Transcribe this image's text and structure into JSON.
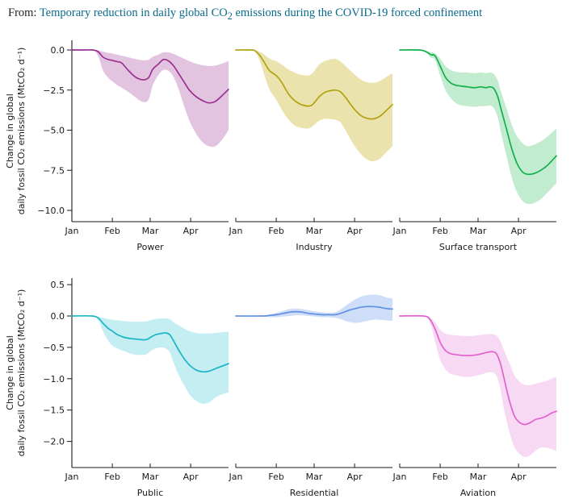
{
  "header": {
    "prefix": "From: ",
    "title_pre": "Temporary reduction in daily global CO",
    "title_sub": "2",
    "title_post": " emissions during the COVID-19 forced confinement",
    "link_color": "#086a8d"
  },
  "figure": {
    "ylabel_line1": "Change in global",
    "ylabel_line2": "daily fossil CO₂ emissions (MtCO₂ d⁻¹)",
    "x_tick_labels": [
      "Jan",
      "Feb",
      "Mar",
      "Apr"
    ],
    "x_tick_days": [
      0,
      31,
      60,
      91
    ],
    "x_total_days": 120,
    "rows": [
      {
        "ylim": [
          -10.7,
          0.6
        ],
        "yticks": [
          {
            "v": 0,
            "label": "0.0"
          },
          {
            "v": -2.5,
            "label": "−2.5"
          },
          {
            "v": -5,
            "label": "−5.0"
          },
          {
            "v": -7.5,
            "label": "−7.5"
          },
          {
            "v": -10,
            "label": "−10.0"
          }
        ],
        "panels": [
          "Power",
          "Industry",
          "Surface transport"
        ]
      },
      {
        "ylim": [
          -2.42,
          0.75
        ],
        "yticks": [
          {
            "v": 0.5,
            "label": "0.5"
          },
          {
            "v": 0,
            "label": "0.0"
          },
          {
            "v": -0.5,
            "label": "−0.5"
          },
          {
            "v": -1,
            "label": "−1.0"
          },
          {
            "v": -1.5,
            "label": "−1.5"
          },
          {
            "v": -2,
            "label": "−2.0"
          }
        ],
        "panels": [
          "Public",
          "Residential",
          "Aviation"
        ]
      }
    ]
  },
  "chart_data": [
    {
      "type": "line",
      "name": "Power",
      "row": 0,
      "line_color": "#9b2f93",
      "band_color": "#e2c4e1",
      "days": [
        0,
        10,
        16,
        20,
        24,
        28,
        31,
        34,
        38,
        43,
        48,
        52,
        56,
        59,
        62,
        66,
        70,
        74,
        78,
        82,
        86,
        90,
        95,
        100,
        105,
        110,
        115,
        120
      ],
      "mean": [
        0,
        0,
        0,
        -0.1,
        -0.45,
        -0.6,
        -0.65,
        -0.72,
        -0.8,
        -1.25,
        -1.65,
        -1.82,
        -1.85,
        -1.7,
        -1.2,
        -0.9,
        -0.6,
        -0.68,
        -1.0,
        -1.5,
        -2.0,
        -2.5,
        -2.9,
        -3.15,
        -3.3,
        -3.2,
        -2.85,
        -2.45
      ],
      "upper": [
        0,
        0,
        0,
        -0.03,
        -0.1,
        -0.18,
        -0.22,
        -0.28,
        -0.35,
        -0.45,
        -0.55,
        -0.62,
        -0.65,
        -0.6,
        -0.42,
        -0.3,
        -0.15,
        -0.15,
        -0.25,
        -0.4,
        -0.55,
        -0.7,
        -0.85,
        -0.95,
        -1.0,
        -0.97,
        -0.85,
        -0.68
      ],
      "lower": [
        0,
        0,
        0,
        -0.35,
        -1.3,
        -1.75,
        -1.95,
        -2.15,
        -2.35,
        -2.6,
        -2.9,
        -3.15,
        -3.25,
        -3.05,
        -2.2,
        -1.6,
        -1.25,
        -1.3,
        -1.7,
        -2.5,
        -3.5,
        -4.4,
        -5.2,
        -5.75,
        -6.0,
        -6.0,
        -5.6,
        -5.0
      ]
    },
    {
      "type": "line",
      "name": "Industry",
      "row": 0,
      "line_color": "#b2a20f",
      "band_color": "#ebe3ae",
      "days": [
        0,
        10,
        14,
        18,
        22,
        26,
        31,
        35,
        40,
        45,
        50,
        55,
        58,
        61,
        64,
        68,
        72,
        76,
        80,
        84,
        88,
        92,
        96,
        100,
        105,
        110,
        115,
        120
      ],
      "mean": [
        0,
        0,
        -0.02,
        -0.3,
        -0.8,
        -1.3,
        -1.6,
        -2.0,
        -2.7,
        -3.15,
        -3.4,
        -3.5,
        -3.45,
        -3.2,
        -2.9,
        -2.65,
        -2.55,
        -2.5,
        -2.6,
        -2.95,
        -3.4,
        -3.8,
        -4.1,
        -4.25,
        -4.3,
        -4.15,
        -3.8,
        -3.4
      ],
      "upper": [
        0,
        0,
        0,
        -0.1,
        -0.3,
        -0.55,
        -0.7,
        -0.9,
        -1.2,
        -1.4,
        -1.55,
        -1.6,
        -1.5,
        -1.2,
        -0.9,
        -0.7,
        -0.6,
        -0.55,
        -0.7,
        -1.0,
        -1.3,
        -1.6,
        -1.85,
        -2.0,
        -2.05,
        -1.95,
        -1.7,
        -1.45
      ],
      "lower": [
        0,
        0,
        -0.05,
        -0.6,
        -1.6,
        -2.5,
        -3.1,
        -3.7,
        -4.3,
        -4.7,
        -4.85,
        -4.9,
        -4.8,
        -4.6,
        -4.4,
        -4.3,
        -4.3,
        -4.35,
        -4.5,
        -5.0,
        -5.6,
        -6.1,
        -6.5,
        -6.8,
        -6.95,
        -6.8,
        -6.4,
        -6.0
      ]
    },
    {
      "type": "line",
      "name": "Surface transport",
      "row": 0,
      "line_color": "#10b04b",
      "band_color": "#c2ecd0",
      "days": [
        0,
        15,
        20,
        24,
        27,
        31,
        35,
        39,
        43,
        47,
        52,
        57,
        62,
        66,
        69,
        72,
        75,
        78,
        82,
        86,
        90,
        94,
        98,
        103,
        108,
        113,
        120
      ],
      "mean": [
        0,
        0,
        -0.1,
        -0.3,
        -0.35,
        -1.0,
        -1.7,
        -2.05,
        -2.2,
        -2.25,
        -2.3,
        -2.35,
        -2.3,
        -2.35,
        -2.3,
        -2.4,
        -2.9,
        -3.8,
        -5.0,
        -6.2,
        -7.1,
        -7.6,
        -7.75,
        -7.7,
        -7.5,
        -7.2,
        -6.6
      ],
      "upper": [
        0,
        0,
        -0.05,
        -0.15,
        -0.2,
        -0.55,
        -1.0,
        -1.25,
        -1.35,
        -1.4,
        -1.4,
        -1.45,
        -1.4,
        -1.45,
        -1.4,
        -1.5,
        -1.9,
        -2.7,
        -3.7,
        -4.7,
        -5.4,
        -5.8,
        -6.0,
        -5.9,
        -5.7,
        -5.4,
        -4.9
      ],
      "lower": [
        0,
        0,
        -0.15,
        -0.5,
        -0.6,
        -1.6,
        -2.5,
        -3.0,
        -3.3,
        -3.45,
        -3.5,
        -3.55,
        -3.5,
        -3.5,
        -3.45,
        -3.6,
        -4.2,
        -5.3,
        -6.7,
        -8.0,
        -8.9,
        -9.4,
        -9.6,
        -9.55,
        -9.3,
        -8.9,
        -8.3
      ]
    },
    {
      "type": "line",
      "name": "Public",
      "row": 1,
      "line_color": "#1ab5c5",
      "band_color": "#c5eef3",
      "days": [
        0,
        15,
        20,
        24,
        28,
        31,
        35,
        40,
        45,
        50,
        55,
        58,
        61,
        64,
        68,
        72,
        75,
        78,
        82,
        86,
        90,
        95,
        100,
        105,
        110,
        115,
        120
      ],
      "mean": [
        0,
        0,
        -0.03,
        -0.12,
        -0.2,
        -0.24,
        -0.3,
        -0.34,
        -0.36,
        -0.37,
        -0.38,
        -0.37,
        -0.33,
        -0.3,
        -0.28,
        -0.27,
        -0.3,
        -0.4,
        -0.55,
        -0.68,
        -0.78,
        -0.86,
        -0.89,
        -0.88,
        -0.84,
        -0.8,
        -0.76
      ],
      "upper": [
        0,
        0,
        -0.01,
        -0.03,
        -0.05,
        -0.06,
        -0.07,
        -0.08,
        -0.09,
        -0.09,
        -0.09,
        -0.08,
        -0.06,
        -0.05,
        -0.04,
        -0.04,
        -0.05,
        -0.1,
        -0.15,
        -0.2,
        -0.24,
        -0.27,
        -0.28,
        -0.28,
        -0.27,
        -0.26,
        -0.25
      ],
      "lower": [
        0,
        0,
        -0.06,
        -0.25,
        -0.4,
        -0.47,
        -0.52,
        -0.56,
        -0.6,
        -0.62,
        -0.62,
        -0.6,
        -0.55,
        -0.52,
        -0.5,
        -0.52,
        -0.58,
        -0.75,
        -0.95,
        -1.1,
        -1.25,
        -1.35,
        -1.4,
        -1.38,
        -1.3,
        -1.25,
        -1.22
      ]
    },
    {
      "type": "line",
      "name": "Residential",
      "row": 1,
      "line_color": "#6090e4",
      "band_color": "#cfdef8",
      "days": [
        0,
        20,
        26,
        31,
        36,
        41,
        46,
        51,
        56,
        61,
        66,
        71,
        76,
        80,
        84,
        88,
        92,
        96,
        100,
        105,
        110,
        115,
        120
      ],
      "mean": [
        0,
        0,
        0.01,
        0.02,
        0.04,
        0.06,
        0.07,
        0.06,
        0.04,
        0.03,
        0.02,
        0.02,
        0.02,
        0.04,
        0.07,
        0.1,
        0.12,
        0.14,
        0.15,
        0.15,
        0.14,
        0.12,
        0.11
      ],
      "upper": [
        0,
        0.01,
        0.02,
        0.05,
        0.08,
        0.11,
        0.12,
        0.11,
        0.09,
        0.07,
        0.06,
        0.05,
        0.06,
        0.1,
        0.16,
        0.22,
        0.27,
        0.31,
        0.33,
        0.34,
        0.33,
        0.3,
        0.28
      ],
      "lower": [
        0,
        -0.01,
        -0.02,
        -0.02,
        -0.01,
        0,
        0.01,
        0.01,
        0,
        -0.01,
        -0.02,
        -0.02,
        -0.03,
        -0.05,
        -0.08,
        -0.1,
        -0.11,
        -0.1,
        -0.08,
        -0.06,
        -0.06,
        -0.07,
        -0.08
      ]
    },
    {
      "type": "line",
      "name": "Aviation",
      "row": 1,
      "line_color": "#e261ce",
      "band_color": "#f8d9f4",
      "days": [
        0,
        18,
        23,
        27,
        31,
        35,
        39,
        44,
        49,
        54,
        59,
        63,
        67,
        71,
        74,
        77,
        80,
        84,
        88,
        92,
        96,
        100,
        104,
        108,
        112,
        116,
        120
      ],
      "mean": [
        0,
        0,
        -0.05,
        -0.2,
        -0.42,
        -0.55,
        -0.6,
        -0.62,
        -0.63,
        -0.63,
        -0.62,
        -0.6,
        -0.58,
        -0.57,
        -0.6,
        -0.75,
        -1.0,
        -1.35,
        -1.6,
        -1.7,
        -1.73,
        -1.7,
        -1.65,
        -1.63,
        -1.6,
        -1.55,
        -1.52
      ],
      "upper": [
        0,
        0,
        -0.02,
        -0.1,
        -0.22,
        -0.28,
        -0.3,
        -0.31,
        -0.32,
        -0.32,
        -0.31,
        -0.3,
        -0.29,
        -0.29,
        -0.31,
        -0.4,
        -0.55,
        -0.75,
        -0.95,
        -1.05,
        -1.1,
        -1.1,
        -1.08,
        -1.06,
        -1.04,
        -1.0,
        -0.97
      ],
      "lower": [
        0,
        0,
        -0.1,
        -0.4,
        -0.7,
        -0.85,
        -0.92,
        -0.95,
        -0.97,
        -0.97,
        -0.95,
        -0.93,
        -0.9,
        -0.9,
        -0.95,
        -1.15,
        -1.5,
        -1.85,
        -2.1,
        -2.2,
        -2.25,
        -2.22,
        -2.15,
        -2.1,
        -2.1,
        -2.12,
        -2.15
      ]
    }
  ]
}
